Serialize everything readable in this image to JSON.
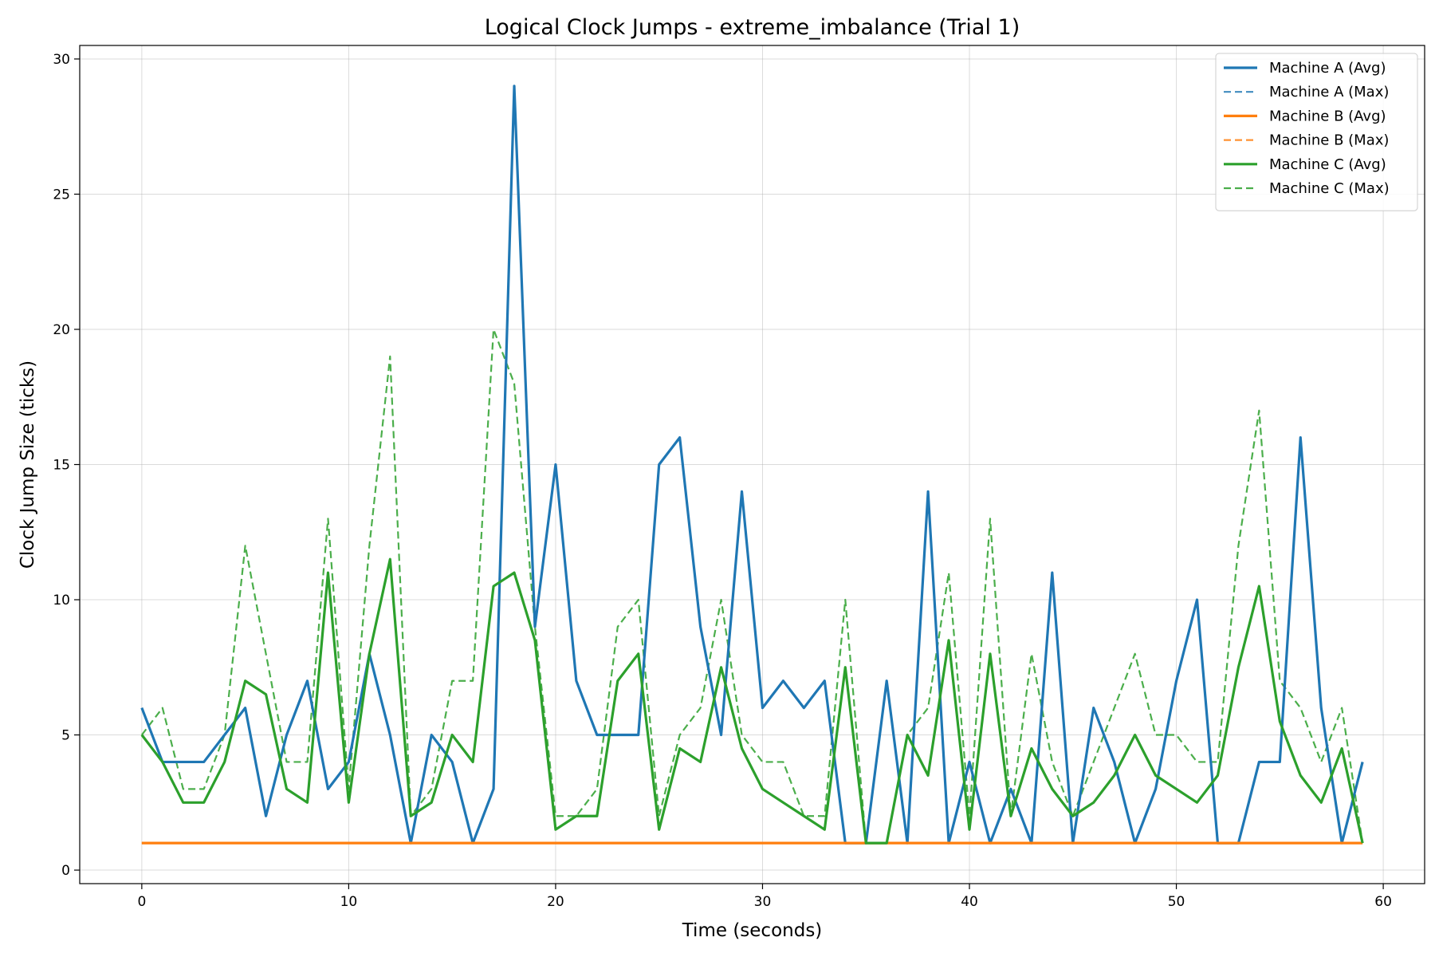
{
  "chart_data": {
    "type": "line",
    "title": "Logical Clock Jumps - extreme_imbalance (Trial 1)",
    "xlabel": "Time (seconds)",
    "ylabel": "Clock Jump Size (ticks)",
    "xlim": [
      -3,
      62
    ],
    "ylim": [
      -0.5,
      30.5
    ],
    "xticks": [
      0,
      10,
      20,
      30,
      40,
      50,
      60
    ],
    "yticks": [
      0,
      5,
      10,
      15,
      20,
      25,
      30
    ],
    "grid": true,
    "legend_position": "top-right",
    "x": [
      0,
      1,
      2,
      3,
      4,
      5,
      6,
      7,
      8,
      9,
      10,
      11,
      12,
      13,
      14,
      15,
      16,
      17,
      18,
      19,
      20,
      21,
      22,
      23,
      24,
      25,
      26,
      27,
      28,
      29,
      30,
      31,
      32,
      33,
      34,
      35,
      36,
      37,
      38,
      39,
      40,
      41,
      42,
      43,
      44,
      45,
      46,
      47,
      48,
      49,
      50,
      51,
      52,
      53,
      54,
      55,
      56,
      57,
      58,
      59
    ],
    "series": [
      {
        "name": "Machine A (Avg)",
        "color": "#1f77b4",
        "style": "solid",
        "values": [
          6,
          4,
          4,
          4,
          5,
          6,
          2,
          5,
          7,
          3,
          4,
          8,
          5,
          1,
          5,
          4,
          1,
          3,
          29,
          9,
          15,
          7,
          5,
          5,
          5,
          15,
          16,
          9,
          5,
          14,
          6,
          7,
          6,
          7,
          1,
          1,
          7,
          1,
          14,
          1,
          4,
          1,
          3,
          1,
          11,
          1,
          6,
          4,
          1,
          3,
          7,
          10,
          1,
          1,
          4,
          4,
          16,
          6,
          1,
          4
        ]
      },
      {
        "name": "Machine A (Max)",
        "color": "#1f77b4",
        "style": "dashed",
        "values": [
          6,
          4,
          4,
          4,
          5,
          6,
          2,
          5,
          7,
          3,
          4,
          8,
          5,
          1,
          5,
          4,
          1,
          3,
          29,
          9,
          15,
          7,
          5,
          5,
          5,
          15,
          16,
          9,
          5,
          14,
          6,
          7,
          6,
          7,
          1,
          1,
          7,
          1,
          14,
          1,
          4,
          1,
          3,
          1,
          11,
          1,
          6,
          4,
          1,
          3,
          7,
          10,
          1,
          1,
          4,
          4,
          16,
          6,
          1,
          4
        ]
      },
      {
        "name": "Machine B (Avg)",
        "color": "#ff7f0e",
        "style": "solid",
        "values": [
          1,
          1,
          1,
          1,
          1,
          1,
          1,
          1,
          1,
          1,
          1,
          1,
          1,
          1,
          1,
          1,
          1,
          1,
          1,
          1,
          1,
          1,
          1,
          1,
          1,
          1,
          1,
          1,
          1,
          1,
          1,
          1,
          1,
          1,
          1,
          1,
          1,
          1,
          1,
          1,
          1,
          1,
          1,
          1,
          1,
          1,
          1,
          1,
          1,
          1,
          1,
          1,
          1,
          1,
          1,
          1,
          1,
          1,
          1,
          1
        ]
      },
      {
        "name": "Machine B (Max)",
        "color": "#ff7f0e",
        "style": "dashed",
        "values": [
          1,
          1,
          1,
          1,
          1,
          1,
          1,
          1,
          1,
          1,
          1,
          1,
          1,
          1,
          1,
          1,
          1,
          1,
          1,
          1,
          1,
          1,
          1,
          1,
          1,
          1,
          1,
          1,
          1,
          1,
          1,
          1,
          1,
          1,
          1,
          1,
          1,
          1,
          1,
          1,
          1,
          1,
          1,
          1,
          1,
          1,
          1,
          1,
          1,
          1,
          1,
          1,
          1,
          1,
          1,
          1,
          1,
          1,
          1,
          1
        ]
      },
      {
        "name": "Machine C (Avg)",
        "color": "#2ca02c",
        "style": "solid",
        "values": [
          5,
          4,
          2.5,
          2.5,
          4,
          7,
          6.5,
          3,
          2.5,
          11,
          2.5,
          8,
          11.5,
          2,
          2.5,
          5,
          4,
          10.5,
          11,
          8.5,
          1.5,
          2,
          2,
          7,
          8,
          1.5,
          4.5,
          4,
          7.5,
          4.5,
          3,
          2.5,
          2,
          1.5,
          7.5,
          1,
          1,
          5,
          3.5,
          8.5,
          1.5,
          8,
          2,
          4.5,
          3,
          2,
          2.5,
          3.5,
          5,
          3.5,
          3,
          2.5,
          3.5,
          7.5,
          10.5,
          5.5,
          3.5,
          2.5,
          4.5,
          1
        ]
      },
      {
        "name": "Machine C (Max)",
        "color": "#2ca02c",
        "style": "dashed",
        "values": [
          5,
          6,
          3,
          3,
          5,
          12,
          8,
          4,
          4,
          13,
          3,
          12,
          19,
          2,
          3,
          7,
          7,
          20,
          18,
          9,
          2,
          2,
          3,
          9,
          10,
          2,
          5,
          6,
          10,
          5,
          4,
          4,
          2,
          2,
          10,
          1,
          1,
          5,
          6,
          11,
          2,
          13,
          2,
          8,
          4,
          2,
          4,
          6,
          8,
          5,
          5,
          4,
          4,
          12,
          17,
          7,
          6,
          4,
          6,
          1
        ]
      }
    ]
  }
}
